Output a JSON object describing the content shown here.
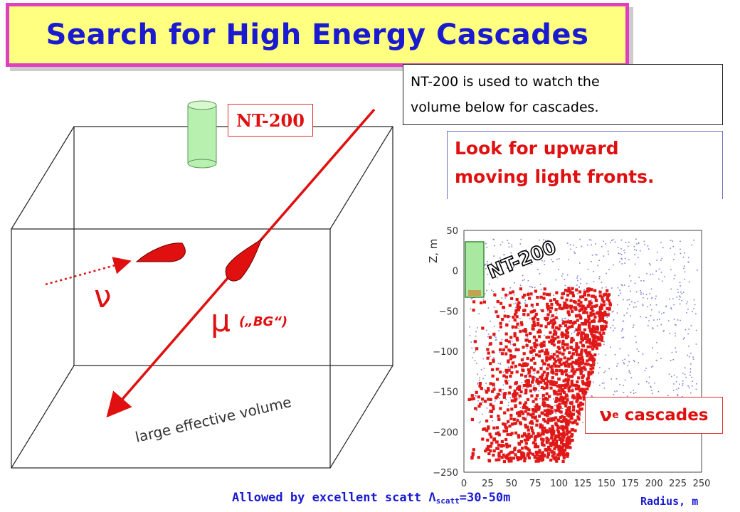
{
  "title": "Search for High Energy Cascades",
  "info": {
    "line1": "NT-200 is used to watch the",
    "line2": "volume below for cascades."
  },
  "look": {
    "line1": "Look for upward",
    "line2": "moving light fronts."
  },
  "detector_label": "NT-200",
  "diagram": {
    "nu_symbol": "ν",
    "mu_symbol": "μ",
    "mu_label": "(„BG“)",
    "volume_label": "large effective volume"
  },
  "plot": {
    "ylabel": "Z, m",
    "xlabel": "Radius, m",
    "x_ticks": [
      "0",
      "25",
      "50",
      "75",
      "100",
      "125",
      "150",
      "175",
      "200",
      "225",
      "250"
    ],
    "y_ticks": [
      "50",
      "0",
      "−50",
      "−100",
      "−150",
      "−200",
      "−250"
    ],
    "overlay_label": "NT-200",
    "legend_symbol": "ν",
    "legend_sub": "e",
    "legend_text": "cascades"
  },
  "footer": {
    "prefix": "Allowed by excellent scatt ",
    "lambda": "Λ",
    "sub": "scatt",
    "suffix": "=30-50m"
  },
  "colors": {
    "title": "#1a1ad0",
    "accent_red": "#e01010",
    "title_bg": "#ffff80",
    "title_border": "#e040c0",
    "detector_green": "#b8f0b0"
  }
}
